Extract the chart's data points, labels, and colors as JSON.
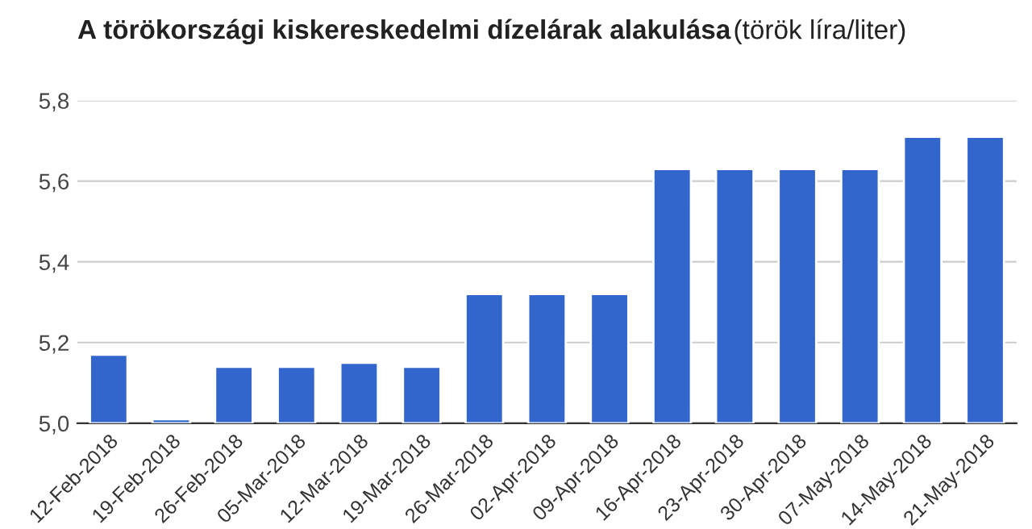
{
  "chart_data": {
    "type": "bar",
    "title": "A törökországi kiskereskedelmi dízelárak alakulása",
    "subtitle": "(török líra/liter)",
    "categories": [
      "12-Feb-2018",
      "19-Feb-2018",
      "26-Feb-2018",
      "05-Mar-2018",
      "12-Mar-2018",
      "19-Mar-2018",
      "26-Mar-2018",
      "02-Apr-2018",
      "09-Apr-2018",
      "16-Apr-2018",
      "23-Apr-2018",
      "30-Apr-2018",
      "07-May-2018",
      "14-May-2018",
      "21-May-2018"
    ],
    "values": [
      5.17,
      5.01,
      5.14,
      5.14,
      5.15,
      5.14,
      5.32,
      5.32,
      5.32,
      5.63,
      5.63,
      5.63,
      5.63,
      5.71,
      5.71
    ],
    "color": "#3366cc",
    "ylim": [
      5.0,
      5.8
    ],
    "yticks": [
      {
        "value": 5.0,
        "label": "5,0"
      },
      {
        "value": 5.2,
        "label": "5,2"
      },
      {
        "value": 5.4,
        "label": "5,4"
      },
      {
        "value": 5.6,
        "label": "5,6"
      },
      {
        "value": 5.8,
        "label": "5,8"
      }
    ],
    "grid": "y"
  }
}
